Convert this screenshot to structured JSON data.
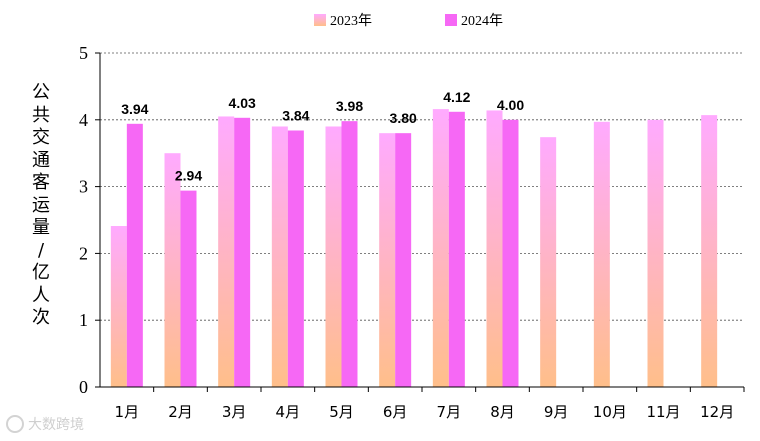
{
  "chart_data": {
    "type": "bar",
    "ylabel": "公共交通客运量/亿人次",
    "ylim": [
      0,
      5
    ],
    "yticks": [
      "0",
      "1",
      "2",
      "3",
      "4",
      "5"
    ],
    "grid": true,
    "legend_position": "top-center",
    "categories": [
      "1月",
      "2月",
      "3月",
      "4月",
      "5月",
      "6月",
      "7月",
      "8月",
      "9月",
      "10月",
      "11月",
      "12月"
    ],
    "series": [
      {
        "name": "2023年",
        "values": [
          2.41,
          3.5,
          4.05,
          3.9,
          3.9,
          3.8,
          4.16,
          4.14,
          3.74,
          3.97,
          4.0,
          4.07
        ],
        "color_top": "#ffaaff",
        "color_bottom": "#ffbf8a"
      },
      {
        "name": "2024年",
        "values": [
          3.94,
          2.94,
          4.03,
          3.84,
          3.98,
          3.8,
          4.12,
          4.0,
          null,
          null,
          null,
          null
        ],
        "color": "#f668f5"
      }
    ],
    "data_labels": [
      "3.94",
      "2.94",
      "4.03",
      "3.84",
      "3.98",
      "3.80",
      "4.12",
      "4.00"
    ]
  },
  "legend": {
    "items": [
      "2023年",
      "2024年"
    ]
  },
  "ylabel_chars": [
    "公",
    "共",
    "交",
    "通",
    "客",
    "运",
    "量",
    "/",
    "亿",
    "人",
    "次"
  ],
  "watermark": {
    "text": "大数跨境"
  }
}
